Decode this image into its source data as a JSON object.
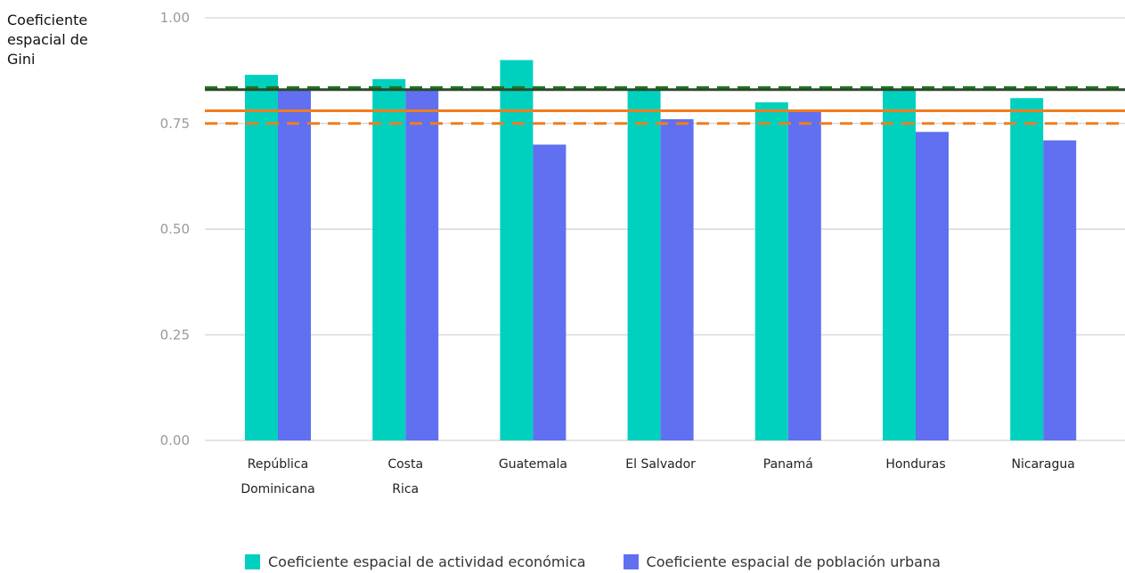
{
  "chart_data": {
    "type": "bar",
    "ylabel": "Coeficiente\nespacial de\nGini",
    "ylim": [
      0,
      1.0
    ],
    "yticks": [
      "0.00",
      "0.25",
      "0.50",
      "0.75",
      "1.00"
    ],
    "grid": true,
    "legend_placement": "bottom-center",
    "categories": [
      [
        "República",
        "Dominicana"
      ],
      [
        "Costa",
        "Rica"
      ],
      [
        "Guatemala"
      ],
      [
        "El Salvador"
      ],
      [
        "Panamá"
      ],
      [
        "Honduras"
      ],
      [
        "Nicaragua"
      ]
    ],
    "series": [
      {
        "name": "Coeficiente espacial de actividad económica",
        "color": "#00d1bf",
        "values": [
          0.865,
          0.855,
          0.9,
          0.83,
          0.8,
          0.83,
          0.81
        ]
      },
      {
        "name": "Coeficiente espacial de población urbana",
        "color": "#6070f0",
        "values": [
          0.83,
          0.83,
          0.7,
          0.76,
          0.78,
          0.73,
          0.71
        ]
      }
    ],
    "reference_lines": [
      {
        "value": 0.835,
        "color": "#1e7a1e",
        "style": "dashed"
      },
      {
        "value": 0.83,
        "color": "#2b4a2b",
        "style": "solid"
      },
      {
        "value": 0.78,
        "color": "#f07d1e",
        "style": "solid"
      },
      {
        "value": 0.75,
        "color": "#f07d1e",
        "style": "dashed"
      }
    ]
  }
}
